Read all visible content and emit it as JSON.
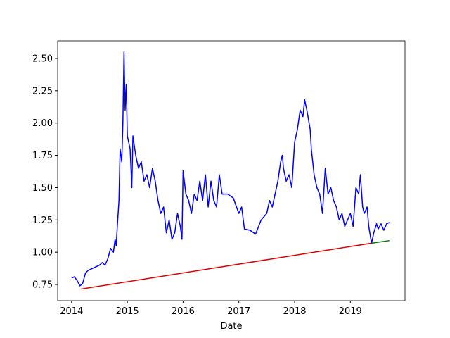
{
  "chart_data": {
    "type": "line",
    "x_label": "Date",
    "xlim": [
      2013.75,
      2019.98
    ],
    "ylim": [
      0.625,
      2.636
    ],
    "xticks": [
      2014,
      2015,
      2016,
      2017,
      2018,
      2019
    ],
    "yticks": [
      0.75,
      {
        "value": 1,
        "label": "1.00"
      },
      1.25,
      {
        "value": 1.5,
        "label": "1.50"
      },
      1.75,
      {
        "value": 2,
        "label": "2.00"
      },
      2.25,
      {
        "value": 2.5,
        "label": "2.50"
      }
    ],
    "series": [
      {
        "color": "#0000ff",
        "x": [
          2014.0,
          2014.05,
          2014.1,
          2014.15,
          2014.2,
          2014.25,
          2014.3,
          2014.4,
          2014.5,
          2014.55,
          2014.6,
          2014.65,
          2014.7,
          2014.75,
          2014.78,
          2014.8,
          2014.82,
          2014.85,
          2014.87,
          2014.9,
          2014.92,
          2014.94,
          2014.96,
          2014.98,
          2015.0,
          2015.05,
          2015.08,
          2015.1,
          2015.15,
          2015.2,
          2015.25,
          2015.3,
          2015.35,
          2015.4,
          2015.45,
          2015.5,
          2015.55,
          2015.6,
          2015.65,
          2015.7,
          2015.75,
          2015.8,
          2015.85,
          2015.9,
          2015.95,
          2015.98,
          2016.0,
          2016.05,
          2016.1,
          2016.15,
          2016.2,
          2016.25,
          2016.3,
          2016.35,
          2016.4,
          2016.45,
          2016.5,
          2016.55,
          2016.6,
          2016.65,
          2016.7,
          2016.8,
          2016.9,
          2017.0,
          2017.05,
          2017.1,
          2017.2,
          2017.3,
          2017.4,
          2017.5,
          2017.55,
          2017.6,
          2017.7,
          2017.75,
          2017.78,
          2017.8,
          2017.85,
          2017.9,
          2017.95,
          2018.0,
          2018.05,
          2018.1,
          2018.15,
          2018.18,
          2018.22,
          2018.28,
          2018.3,
          2018.35,
          2018.4,
          2018.45,
          2018.5,
          2018.55,
          2018.6,
          2018.65,
          2018.7,
          2018.75,
          2018.8,
          2018.85,
          2018.9,
          2018.95,
          2019.0,
          2019.05,
          2019.1,
          2019.15,
          2019.18,
          2019.22,
          2019.25,
          2019.3,
          2019.33,
          2019.38,
          2019.42,
          2019.47,
          2019.5,
          2019.55,
          2019.6,
          2019.65,
          2019.7
        ],
        "values": [
          0.8,
          0.81,
          0.78,
          0.74,
          0.76,
          0.84,
          0.86,
          0.88,
          0.9,
          0.92,
          0.9,
          0.95,
          1.03,
          1.0,
          1.1,
          1.05,
          1.2,
          1.4,
          1.8,
          1.7,
          2.0,
          2.55,
          2.1,
          2.3,
          1.9,
          1.8,
          1.5,
          1.9,
          1.75,
          1.65,
          1.7,
          1.55,
          1.6,
          1.5,
          1.65,
          1.55,
          1.4,
          1.3,
          1.35,
          1.15,
          1.25,
          1.1,
          1.15,
          1.3,
          1.2,
          1.1,
          1.63,
          1.45,
          1.4,
          1.3,
          1.45,
          1.4,
          1.55,
          1.4,
          1.6,
          1.35,
          1.55,
          1.4,
          1.35,
          1.6,
          1.45,
          1.45,
          1.42,
          1.3,
          1.35,
          1.18,
          1.17,
          1.14,
          1.25,
          1.3,
          1.4,
          1.35,
          1.55,
          1.7,
          1.75,
          1.65,
          1.55,
          1.6,
          1.5,
          1.85,
          1.95,
          2.1,
          2.05,
          2.18,
          2.1,
          1.95,
          1.8,
          1.6,
          1.5,
          1.45,
          1.3,
          1.65,
          1.45,
          1.5,
          1.4,
          1.35,
          1.25,
          1.3,
          1.2,
          1.25,
          1.3,
          1.2,
          1.5,
          1.45,
          1.6,
          1.35,
          1.3,
          1.35,
          1.2,
          1.07,
          1.15,
          1.22,
          1.18,
          1.22,
          1.17,
          1.22,
          1.23
        ]
      },
      {
        "color": "#008000",
        "x": [
          2019.38,
          2019.7
        ],
        "values": [
          1.07,
          1.09
        ]
      },
      {
        "color": "#e00000",
        "x": [
          2014.17,
          2019.38
        ],
        "values": [
          0.715,
          1.07
        ]
      }
    ]
  }
}
